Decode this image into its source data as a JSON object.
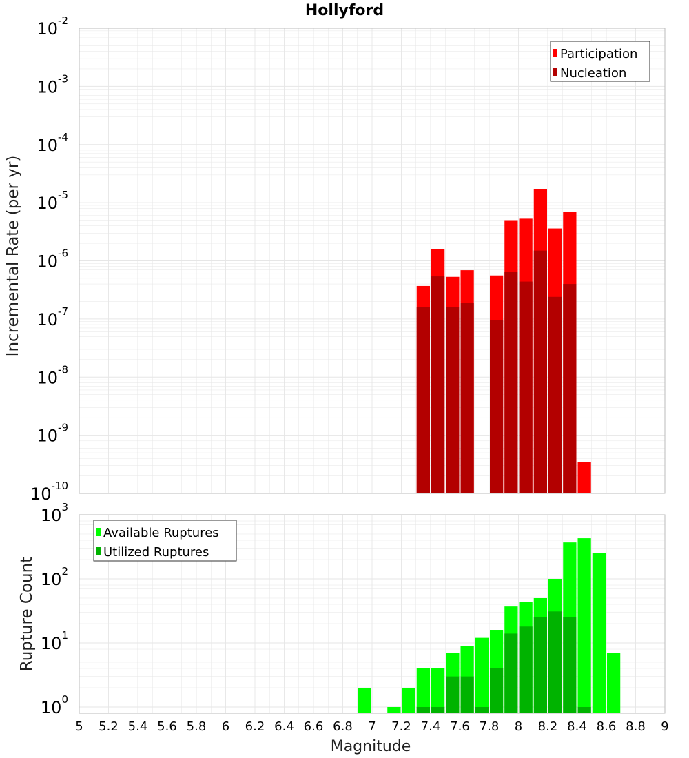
{
  "title": "Hollyford",
  "colors": {
    "participation": "#ff0000",
    "nucleation": "#b30000",
    "available": "#00ff00",
    "utilized": "#00b300",
    "grid": "#e6e6e6",
    "axis": "#bbbbbb"
  },
  "chart_data": [
    {
      "type": "bar",
      "panel": "top",
      "ylabel": "Incremental Rate (per yr)",
      "xlabel": "",
      "yscale": "log",
      "ylim": [
        1e-10,
        0.01
      ],
      "xlim": [
        5,
        9
      ],
      "y_ticks": [
        {
          "base": "10",
          "exp": "-2"
        },
        {
          "base": "10",
          "exp": "-3"
        },
        {
          "base": "10",
          "exp": "-4"
        },
        {
          "base": "10",
          "exp": "-5"
        },
        {
          "base": "10",
          "exp": "-6"
        },
        {
          "base": "10",
          "exp": "-7"
        },
        {
          "base": "10",
          "exp": "-8"
        },
        {
          "base": "10",
          "exp": "-9"
        },
        {
          "base": "10",
          "exp": "-10"
        }
      ],
      "y_tick_values": [
        0.01,
        0.001,
        0.0001,
        1e-05,
        1e-06,
        1e-07,
        1e-08,
        1e-09,
        1e-10
      ],
      "legend_placement": "top-right",
      "series": [
        {
          "name": "Participation",
          "x": [
            7.35,
            7.45,
            7.55,
            7.65,
            7.85,
            7.95,
            8.05,
            8.15,
            8.25,
            8.35,
            8.45
          ],
          "values": [
            3.7e-07,
            1.6e-06,
            5.3e-07,
            6.9e-07,
            5.6e-07,
            5e-06,
            5.3e-06,
            1.7e-05,
            3.6e-06,
            7e-06,
            3.5e-10
          ]
        },
        {
          "name": "Nucleation",
          "x": [
            7.35,
            7.45,
            7.55,
            7.65,
            7.85,
            7.95,
            8.05,
            8.15,
            8.25,
            8.35
          ],
          "values": [
            1.6e-07,
            5.4e-07,
            1.6e-07,
            1.9e-07,
            9.5e-08,
            6.5e-07,
            4.4e-07,
            1.5e-06,
            2.4e-07,
            4e-07
          ]
        }
      ]
    },
    {
      "type": "bar",
      "panel": "bottom",
      "ylabel": "Rupture Count",
      "xlabel": "Magnitude",
      "yscale": "log",
      "ylim": [
        0.8,
        1000
      ],
      "xlim": [
        5,
        9
      ],
      "x_ticks": [
        "5",
        "5.2",
        "5.4",
        "5.6",
        "5.8",
        "6",
        "6.2",
        "6.4",
        "6.6",
        "6.8",
        "7",
        "7.2",
        "7.4",
        "7.6",
        "7.8",
        "8",
        "8.2",
        "8.4",
        "8.6",
        "8.8",
        "9"
      ],
      "y_ticks": [
        {
          "base": "10",
          "exp": "3"
        },
        {
          "base": "10",
          "exp": "2"
        },
        {
          "base": "10",
          "exp": "1"
        },
        {
          "base": "10",
          "exp": "0"
        }
      ],
      "y_tick_values": [
        1000,
        100,
        10,
        1
      ],
      "legend_placement": "top-left",
      "series": [
        {
          "name": "Available Ruptures",
          "x": [
            6.95,
            7.15,
            7.25,
            7.35,
            7.45,
            7.55,
            7.65,
            7.75,
            7.85,
            7.95,
            8.05,
            8.15,
            8.25,
            8.35,
            8.45,
            8.55,
            8.65
          ],
          "values": [
            2,
            1,
            2,
            4,
            4,
            7,
            9,
            12,
            16,
            37,
            44,
            50,
            100,
            370,
            430,
            250,
            7
          ]
        },
        {
          "name": "Utilized Ruptures",
          "x": [
            7.35,
            7.45,
            7.55,
            7.65,
            7.75,
            7.85,
            7.95,
            8.05,
            8.15,
            8.25,
            8.35,
            8.45
          ],
          "values": [
            1,
            1,
            3,
            3,
            1,
            4,
            14,
            18,
            25,
            31,
            25,
            1
          ]
        }
      ]
    }
  ]
}
